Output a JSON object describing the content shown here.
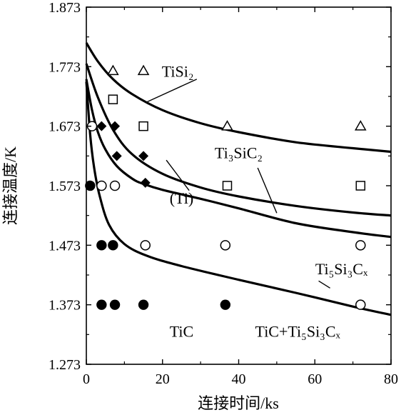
{
  "chart_data": {
    "type": "scatter",
    "xlabel": "连接时间/ks",
    "ylabel": "连接温度/K",
    "xlim": [
      0,
      80
    ],
    "ylim": [
      1.273,
      1.873
    ],
    "x_ticks": [
      "0",
      "20",
      "40",
      "60",
      "80"
    ],
    "y_ticks": [
      "1.273",
      "1.373",
      "1.473",
      "1.573",
      "1.673",
      "1.773",
      "1.873"
    ],
    "series": [
      {
        "marker": "filled-circle",
        "points": [
          [
            1.0,
            1.573
          ],
          [
            4.0,
            1.473
          ],
          [
            7.0,
            1.473
          ],
          [
            4.0,
            1.373
          ],
          [
            7.5,
            1.373
          ],
          [
            15.0,
            1.373
          ],
          [
            36.5,
            1.373
          ]
        ]
      },
      {
        "marker": "open-circle",
        "points": [
          [
            1.5,
            1.673
          ],
          [
            4.0,
            1.573
          ],
          [
            7.5,
            1.573
          ],
          [
            15.5,
            1.473
          ],
          [
            36.5,
            1.473
          ],
          [
            72.0,
            1.473
          ],
          [
            72.0,
            1.373
          ]
        ]
      },
      {
        "marker": "filled-diamond",
        "points": [
          [
            4.0,
            1.673
          ],
          [
            7.5,
            1.673
          ],
          [
            8.0,
            1.623
          ],
          [
            15.0,
            1.623
          ],
          [
            15.5,
            1.578
          ]
        ]
      },
      {
        "marker": "open-square",
        "points": [
          [
            7.0,
            1.718
          ],
          [
            15.0,
            1.673
          ],
          [
            37.0,
            1.573
          ],
          [
            72.0,
            1.573
          ]
        ]
      },
      {
        "marker": "open-triangle",
        "points": [
          [
            7.0,
            1.766
          ],
          [
            15.0,
            1.766
          ],
          [
            37.0,
            1.673
          ],
          [
            72.0,
            1.673
          ]
        ]
      }
    ],
    "boundaries": [
      {
        "points": [
          [
            0,
            1.813
          ],
          [
            3,
            1.782
          ],
          [
            7,
            1.752
          ],
          [
            12,
            1.727
          ],
          [
            20,
            1.7
          ],
          [
            30,
            1.678
          ],
          [
            40,
            1.663
          ],
          [
            55,
            1.646
          ],
          [
            70,
            1.636
          ],
          [
            80,
            1.63
          ]
        ]
      },
      {
        "points": [
          [
            0,
            1.778
          ],
          [
            3,
            1.722
          ],
          [
            7,
            1.667
          ],
          [
            12,
            1.626
          ],
          [
            20,
            1.593
          ],
          [
            30,
            1.57
          ],
          [
            40,
            1.555
          ],
          [
            55,
            1.539
          ],
          [
            70,
            1.528
          ],
          [
            80,
            1.523
          ]
        ]
      },
      {
        "points": [
          [
            0,
            1.752
          ],
          [
            1.5,
            1.7
          ],
          [
            3,
            1.664
          ],
          [
            5,
            1.634
          ],
          [
            8,
            1.606
          ],
          [
            12,
            1.585
          ],
          [
            15,
            1.576
          ],
          [
            20,
            1.566
          ],
          [
            30,
            1.551
          ],
          [
            40,
            1.535
          ],
          [
            55,
            1.51
          ],
          [
            70,
            1.495
          ],
          [
            80,
            1.487
          ]
        ]
      },
      {
        "points": [
          [
            0,
            1.748
          ],
          [
            1,
            1.66
          ],
          [
            2,
            1.605
          ],
          [
            3.5,
            1.556
          ],
          [
            6,
            1.507
          ],
          [
            10,
            1.475
          ],
          [
            16,
            1.455
          ],
          [
            25,
            1.438
          ],
          [
            40,
            1.415
          ],
          [
            55,
            1.393
          ],
          [
            70,
            1.37
          ],
          [
            80,
            1.356
          ]
        ]
      }
    ],
    "annotations": [
      {
        "text": "TiSi₂",
        "x": 24,
        "y": 1.756
      },
      {
        "text": "Ti₃SiC₂",
        "x": 40,
        "y": 1.619
      },
      {
        "text": "(Ti)",
        "x": 25,
        "y": 1.543
      },
      {
        "text": "Ti₅Si₃Cₓ",
        "x": 67,
        "y": 1.424
      },
      {
        "text": "TiC",
        "x": 25,
        "y": 1.319
      },
      {
        "text": "TiC+Ti₅Si₃Cₓ",
        "x": 55.5,
        "y": 1.319
      }
    ]
  }
}
